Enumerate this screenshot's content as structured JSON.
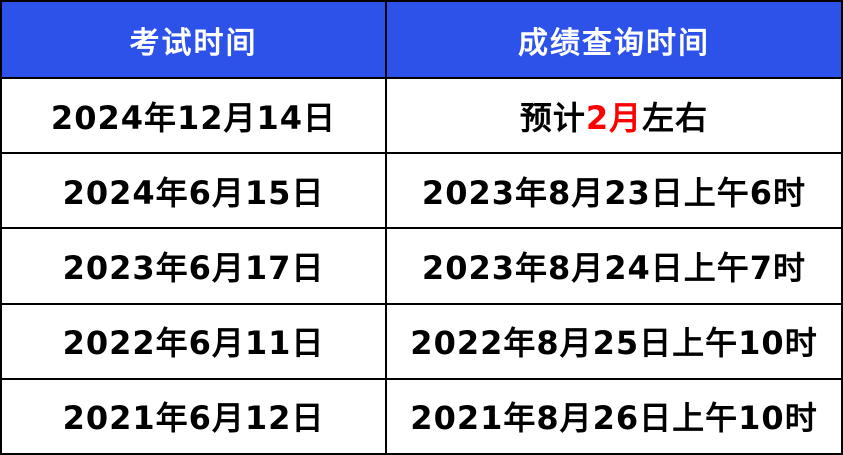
{
  "colors": {
    "header-bg": "#2d52ea",
    "header-text": "#ffffff",
    "border": "#000000",
    "body-text": "#000000",
    "highlight": "#ff0000",
    "row-bg": "#ffffff"
  },
  "chart_data": {
    "type": "table",
    "columns": [
      "考试时间",
      "成绩查询时间"
    ],
    "rows": [
      [
        "2024年12月14日",
        "预计2月左右"
      ],
      [
        "2024年6月15日",
        "2023年8月23日上午6时"
      ],
      [
        "2023年6月17日",
        "2023年8月24日上午7时"
      ],
      [
        "2022年6月11日",
        "2022年8月25日上午10时"
      ],
      [
        "2021年6月12日",
        "2021年8月26日上午10时"
      ]
    ],
    "annotations": [
      {
        "row": 0,
        "column": 1,
        "highlighted_text": "2月",
        "color": "#ff0000"
      }
    ],
    "layout": {
      "header_background": "#2d52ea",
      "grid": "black 2px lines",
      "text_align": "center"
    }
  },
  "table": {
    "header": {
      "exam_time": "考试时间",
      "query_time": "成绩查询时间"
    },
    "row0": {
      "exam_time": "2024年12月14日",
      "query_prefix": "预计",
      "query_highlight": "2月",
      "query_suffix": "左右"
    },
    "row1": {
      "exam_time": "2024年6月15日",
      "query_time": "2023年8月23日上午6时"
    },
    "row2": {
      "exam_time": "2023年6月17日",
      "query_time": "2023年8月24日上午7时"
    },
    "row3": {
      "exam_time": "2022年6月11日",
      "query_time": "2022年8月25日上午10时"
    },
    "row4": {
      "exam_time": "2021年6月12日",
      "query_time": "2021年8月26日上午10时"
    }
  }
}
